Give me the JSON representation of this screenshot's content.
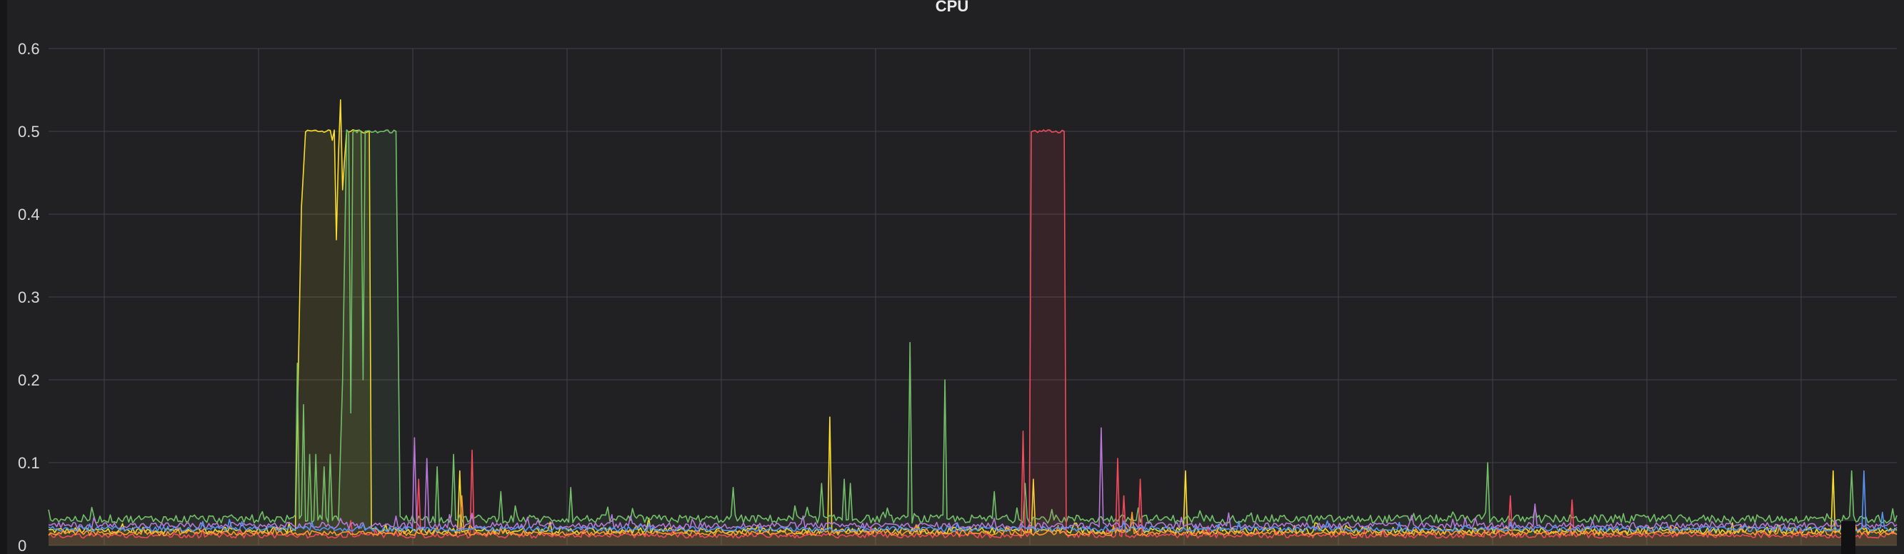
{
  "panel": {
    "title": "CPU"
  },
  "chart_data": {
    "type": "line",
    "title": "CPU",
    "xlabel": "",
    "ylabel": "",
    "ylim": [
      0,
      0.6
    ],
    "y_ticks": [
      "0",
      "0.1",
      "0.2",
      "0.3",
      "0.4",
      "0.5",
      "0.6"
    ],
    "x_range": [
      0,
      100
    ],
    "grid": true,
    "legend": "none",
    "series": [
      {
        "color": "#fade2a",
        "baseline": 0.018,
        "noise": 0.004,
        "fill": true,
        "segments": [
          [
            13.4,
            0.018
          ],
          [
            13.7,
            0.41
          ],
          [
            13.9,
            0.5
          ],
          [
            15.3,
            0.5
          ],
          [
            15.4,
            0.49
          ],
          [
            15.5,
            0.5
          ],
          [
            15.6,
            0.37
          ],
          [
            15.7,
            0.47
          ],
          [
            15.75,
            0.54
          ],
          [
            15.9,
            0.43
          ],
          [
            16.1,
            0.5
          ],
          [
            17.2,
            0.5
          ],
          [
            17.3,
            0.5
          ],
          [
            17.5,
            0.02
          ]
        ],
        "spikes": [
          [
            22.2,
            0.09
          ],
          [
            42.3,
            0.155
          ],
          [
            53.3,
            0.08
          ],
          [
            61.5,
            0.09
          ],
          [
            96.5,
            0.09
          ]
        ]
      },
      {
        "color": "#73bf69",
        "baseline": 0.032,
        "noise": 0.005,
        "fill": true,
        "segments": [
          [
            15.7,
            0.03
          ],
          [
            15.9,
            0.2
          ],
          [
            16.1,
            0.5
          ],
          [
            18.3,
            0.5
          ],
          [
            18.8,
            0.5
          ],
          [
            19.0,
            0.035
          ]
        ],
        "spikes": [
          [
            13.5,
            0.22
          ],
          [
            13.8,
            0.17
          ],
          [
            14.1,
            0.11
          ],
          [
            14.5,
            0.11
          ],
          [
            14.9,
            0.095
          ],
          [
            15.2,
            0.11
          ],
          [
            16.4,
            0.16
          ],
          [
            17.0,
            0.2
          ],
          [
            21.0,
            0.095
          ],
          [
            21.9,
            0.11
          ],
          [
            24.5,
            0.065
          ],
          [
            28.3,
            0.07
          ],
          [
            37.0,
            0.07
          ],
          [
            41.8,
            0.075
          ],
          [
            43.0,
            0.08
          ],
          [
            43.4,
            0.075
          ],
          [
            46.6,
            0.245
          ],
          [
            48.5,
            0.2
          ],
          [
            51.2,
            0.065
          ],
          [
            52.8,
            0.075
          ],
          [
            77.9,
            0.1
          ],
          [
            97.6,
            0.09
          ]
        ]
      },
      {
        "color": "#f2495c",
        "baseline": 0.012,
        "noise": 0.003,
        "fill": true,
        "segments": [
          [
            53.1,
            0.015
          ],
          [
            53.2,
            0.5
          ],
          [
            55.0,
            0.5
          ],
          [
            55.1,
            0.015
          ]
        ],
        "spikes": [
          [
            16.3,
            0.03
          ],
          [
            20.0,
            0.08
          ],
          [
            22.9,
            0.115
          ],
          [
            52.7,
            0.138
          ],
          [
            57.8,
            0.105
          ],
          [
            58.2,
            0.06
          ],
          [
            59.1,
            0.08
          ],
          [
            79.1,
            0.06
          ],
          [
            82.4,
            0.055
          ]
        ]
      },
      {
        "color": "#b877d9",
        "baseline": 0.024,
        "noise": 0.004,
        "fill": false,
        "segments": [],
        "spikes": [
          [
            19.8,
            0.13
          ],
          [
            20.5,
            0.105
          ],
          [
            57.0,
            0.142
          ],
          [
            80.4,
            0.05
          ]
        ]
      },
      {
        "color": "#ff9830",
        "baseline": 0.015,
        "noise": 0.003,
        "fill": false,
        "segments": [],
        "spikes": [
          [
            22.4,
            0.06
          ],
          [
            58.6,
            0.04
          ]
        ]
      },
      {
        "color": "#5794f2",
        "baseline": 0.02,
        "noise": 0.003,
        "fill": false,
        "segments": [],
        "spikes": [
          [
            98.2,
            0.09
          ],
          [
            99.2,
            0.04
          ]
        ]
      }
    ]
  }
}
